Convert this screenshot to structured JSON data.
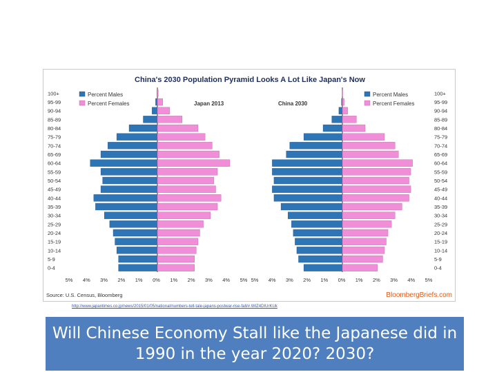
{
  "chart_data": {
    "type": "bar",
    "title": "China's 2030 Population Pyramid Looks A Lot Like Japan's Now",
    "age_groups": [
      "0-4",
      "5-9",
      "10-14",
      "15-19",
      "20-24",
      "25-29",
      "30-34",
      "35-39",
      "40-44",
      "45-49",
      "50-54",
      "55-59",
      "60-64",
      "65-69",
      "70-74",
      "75-79",
      "80-84",
      "85-89",
      "90-94",
      "95-99",
      "100+"
    ],
    "x_tick_labels": [
      "5%",
      "4%",
      "3%",
      "2%",
      "1%",
      "0%",
      "1%",
      "2%",
      "3%",
      "4%",
      "5%"
    ],
    "xlim": [
      -5,
      5
    ],
    "source": "Source: U.S. Census, Bloomberg",
    "brand": "BloombergBriefs.com",
    "panels": [
      {
        "name": "Japan 2013",
        "legend": [
          "Percent Males",
          "Percent Females"
        ],
        "legend_position": "top-left",
        "series": [
          {
            "name": "Percent Males",
            "color": "#2e75b6",
            "values": [
              2.2,
              2.2,
              2.3,
              2.4,
              2.5,
              2.7,
              3.0,
              3.5,
              3.6,
              3.2,
              3.1,
              3.2,
              3.8,
              3.2,
              2.8,
              2.3,
              1.6,
              0.8,
              0.3,
              0.1,
              0.02
            ]
          },
          {
            "name": "Percent Females",
            "color": "#f08fd8",
            "values": [
              2.1,
              2.1,
              2.2,
              2.3,
              2.4,
              2.6,
              3.0,
              3.4,
              3.6,
              3.3,
              3.2,
              3.4,
              4.1,
              3.5,
              3.1,
              2.7,
              2.3,
              1.4,
              0.7,
              0.3,
              0.05
            ]
          }
        ]
      },
      {
        "name": "China 2030",
        "legend": [
          "Percent Males",
          "Percent Females"
        ],
        "legend_position": "top-right",
        "series": [
          {
            "name": "Percent Males",
            "color": "#2e75b6",
            "values": [
              2.2,
              2.5,
              2.6,
              2.7,
              2.8,
              2.9,
              3.1,
              3.5,
              3.9,
              4.0,
              3.9,
              4.0,
              4.0,
              3.2,
              3.0,
              2.2,
              1.1,
              0.6,
              0.2,
              0.05,
              0.01
            ]
          },
          {
            "name": "Percent Females",
            "color": "#f08fd8",
            "values": [
              2.0,
              2.3,
              2.4,
              2.5,
              2.6,
              2.8,
              3.0,
              3.4,
              3.8,
              3.9,
              3.8,
              3.9,
              4.0,
              3.2,
              3.0,
              2.4,
              1.3,
              0.8,
              0.3,
              0.1,
              0.02
            ]
          }
        ]
      }
    ]
  },
  "source_url": "http://www.japantimes.co.jp/news/2015/01/05/national/numbers-tell-tale-japans-postwar-rise-fall/#.WIZ4DIUrKUk",
  "caption": "Will Chinese Economy Stall like the Japanese did in 1990 in the year 2020? 2030?"
}
